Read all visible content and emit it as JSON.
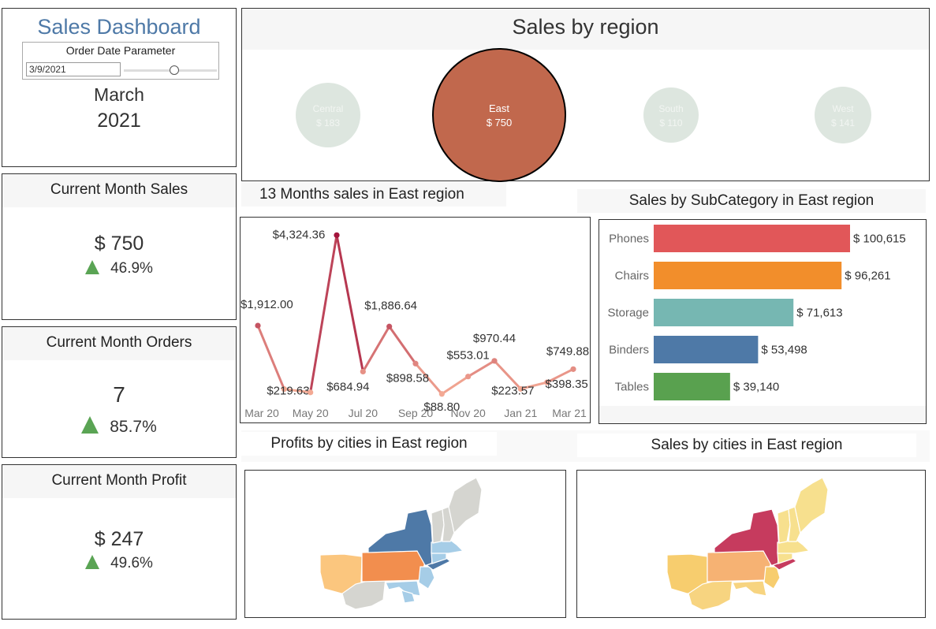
{
  "header": {
    "title": "Sales Dashboard",
    "param_label": "Order Date Parameter",
    "param_value": "3/9/2021",
    "month": "March",
    "year": "2021"
  },
  "kpis": {
    "sales": {
      "title": "Current Month Sales",
      "value": "$ 750",
      "change": "46.9%"
    },
    "orders": {
      "title": "Current Month Orders",
      "value": "7",
      "change": "85.7%"
    },
    "profit": {
      "title": "Current Month Profit",
      "value": "$ 247",
      "change": "49.6%"
    }
  },
  "region_chart": {
    "title": "Sales by region",
    "regions": [
      {
        "name": "Central",
        "value": "$ 183"
      },
      {
        "name": "East",
        "value": "$ 750"
      },
      {
        "name": "South",
        "value": "$ 110"
      },
      {
        "name": "West",
        "value": "$ 141"
      }
    ]
  },
  "line_chart_title": "13 Months sales in East region",
  "bar_chart_title": "Sales by SubCategory in East region",
  "profit_map_title": "Profits by cities in East region",
  "sales_map_title": "Sales by cities in East region",
  "colors": {
    "east_bubble": "#c1684d",
    "other_bubble": "#dde6df",
    "line_high": "#a3143c",
    "line_low": "#f3a994",
    "kpi_up": "#5aa454"
  },
  "chart_data": [
    {
      "type": "line",
      "title": "13 Months sales in East region",
      "x": [
        "Mar 20",
        "Apr 20",
        "May 20",
        "Jun 20",
        "Jul 20",
        "Aug 20",
        "Sep 20",
        "Oct 20",
        "Nov 20",
        "Dec 20",
        "Jan 21",
        "Feb 21",
        "Mar 21"
      ],
      "x_tick_labels": [
        "Mar 20",
        "May 20",
        "Jul 20",
        "Sep 20",
        "Nov 20",
        "Jan 21",
        "Mar 21"
      ],
      "values": [
        1912.0,
        219.63,
        130,
        4324.36,
        684.94,
        1886.64,
        898.58,
        88.8,
        553.01,
        970.44,
        223.57,
        398.35,
        749.88
      ],
      "point_labels": [
        "$1,912.00",
        "$219.63",
        "",
        "$4,324.36",
        "$684.94",
        "$1,886.64",
        "$898.58",
        "$88.80",
        "$553.01",
        "$970.44",
        "$223.57",
        "$398.35",
        "$749.88"
      ],
      "ylim": [
        0,
        4500
      ],
      "grid": false
    },
    {
      "type": "bar",
      "orientation": "horizontal",
      "title": "Sales by SubCategory in East region",
      "categories": [
        "Phones",
        "Chairs",
        "Storage",
        "Binders",
        "Tables"
      ],
      "values": [
        100615,
        96261,
        71613,
        53498,
        39140
      ],
      "value_labels": [
        "$ 100,615",
        "$ 96,261",
        "$ 71,613",
        "$ 53,498",
        "$ 39,140"
      ],
      "colors": [
        "#e15759",
        "#f28e2b",
        "#76b7b2",
        "#4e79a7",
        "#59a14f"
      ],
      "xlim": [
        0,
        100615
      ]
    }
  ]
}
